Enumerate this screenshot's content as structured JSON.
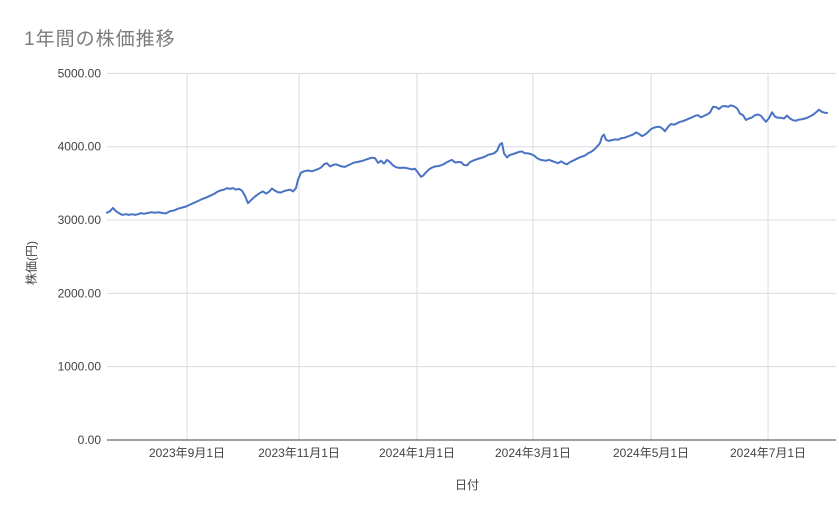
{
  "title": "1年間の株価推移",
  "colors": {
    "line": "#4a73c4",
    "grid": "#dadce0",
    "axis_baseline": "#424242",
    "tick_text": "#424242",
    "title_text": "#7b7b7b"
  },
  "chart_data": {
    "type": "line",
    "title": "1年間の株価推移",
    "xlabel": "日付",
    "ylabel": "株価(円)",
    "ylim": [
      0,
      5000
    ],
    "grid": true,
    "legend": "none",
    "y_ticks": [
      "0.00",
      "1000.00",
      "2000.00",
      "3000.00",
      "4000.00",
      "5000.00"
    ],
    "x_ticks": [
      {
        "label": "2023年9月1日",
        "f": 0.1111
      },
      {
        "label": "2023年11月1日",
        "f": 0.2667
      },
      {
        "label": "2024年1月1日",
        "f": 0.4306
      },
      {
        "label": "2024年3月1日",
        "f": 0.5917
      },
      {
        "label": "2024年5月1日",
        "f": 0.7556
      },
      {
        "label": "2024年7月1日",
        "f": 0.9181
      }
    ],
    "series": [
      {
        "name": "株価",
        "points": [
          [
            0.0,
            3100
          ],
          [
            0.0042,
            3120
          ],
          [
            0.0083,
            3165
          ],
          [
            0.0125,
            3120
          ],
          [
            0.0167,
            3095
          ],
          [
            0.0208,
            3070
          ],
          [
            0.0264,
            3080
          ],
          [
            0.0306,
            3070
          ],
          [
            0.0347,
            3080
          ],
          [
            0.0389,
            3070
          ],
          [
            0.0431,
            3080
          ],
          [
            0.0472,
            3095
          ],
          [
            0.0514,
            3085
          ],
          [
            0.0556,
            3095
          ],
          [
            0.0611,
            3105
          ],
          [
            0.0667,
            3100
          ],
          [
            0.0722,
            3105
          ],
          [
            0.0778,
            3095
          ],
          [
            0.0819,
            3090
          ],
          [
            0.0875,
            3120
          ],
          [
            0.0931,
            3130
          ],
          [
            0.0986,
            3155
          ],
          [
            0.1042,
            3170
          ],
          [
            0.1097,
            3185
          ],
          [
            0.1153,
            3210
          ],
          [
            0.1208,
            3235
          ],
          [
            0.1264,
            3260
          ],
          [
            0.1319,
            3285
          ],
          [
            0.1375,
            3305
          ],
          [
            0.1431,
            3330
          ],
          [
            0.1486,
            3355
          ],
          [
            0.1542,
            3390
          ],
          [
            0.1583,
            3405
          ],
          [
            0.1625,
            3415
          ],
          [
            0.1667,
            3435
          ],
          [
            0.1708,
            3425
          ],
          [
            0.175,
            3435
          ],
          [
            0.1792,
            3415
          ],
          [
            0.1833,
            3425
          ],
          [
            0.1875,
            3400
          ],
          [
            0.1917,
            3330
          ],
          [
            0.1958,
            3230
          ],
          [
            0.2,
            3270
          ],
          [
            0.2042,
            3310
          ],
          [
            0.2083,
            3340
          ],
          [
            0.2125,
            3370
          ],
          [
            0.2167,
            3390
          ],
          [
            0.2208,
            3360
          ],
          [
            0.225,
            3385
          ],
          [
            0.2292,
            3430
          ],
          [
            0.2333,
            3400
          ],
          [
            0.2375,
            3380
          ],
          [
            0.2417,
            3375
          ],
          [
            0.2458,
            3395
          ],
          [
            0.25,
            3405
          ],
          [
            0.2542,
            3415
          ],
          [
            0.2583,
            3390
          ],
          [
            0.2625,
            3435
          ],
          [
            0.2653,
            3550
          ],
          [
            0.2694,
            3645
          ],
          [
            0.2736,
            3665
          ],
          [
            0.2792,
            3675
          ],
          [
            0.2847,
            3665
          ],
          [
            0.2889,
            3680
          ],
          [
            0.2931,
            3695
          ],
          [
            0.2972,
            3715
          ],
          [
            0.3014,
            3760
          ],
          [
            0.3056,
            3775
          ],
          [
            0.3097,
            3730
          ],
          [
            0.3139,
            3750
          ],
          [
            0.3181,
            3760
          ],
          [
            0.3222,
            3745
          ],
          [
            0.3264,
            3730
          ],
          [
            0.3306,
            3725
          ],
          [
            0.3347,
            3745
          ],
          [
            0.3389,
            3765
          ],
          [
            0.3431,
            3785
          ],
          [
            0.3472,
            3790
          ],
          [
            0.3514,
            3800
          ],
          [
            0.3556,
            3810
          ],
          [
            0.3597,
            3825
          ],
          [
            0.3639,
            3840
          ],
          [
            0.3681,
            3850
          ],
          [
            0.3722,
            3845
          ],
          [
            0.3764,
            3780
          ],
          [
            0.3806,
            3810
          ],
          [
            0.3847,
            3770
          ],
          [
            0.3889,
            3820
          ],
          [
            0.3931,
            3790
          ],
          [
            0.3972,
            3745
          ],
          [
            0.4014,
            3720
          ],
          [
            0.4069,
            3710
          ],
          [
            0.4111,
            3715
          ],
          [
            0.4153,
            3710
          ],
          [
            0.4194,
            3700
          ],
          [
            0.4236,
            3690
          ],
          [
            0.4278,
            3700
          ],
          [
            0.4319,
            3645
          ],
          [
            0.4361,
            3590
          ],
          [
            0.4389,
            3605
          ],
          [
            0.4431,
            3650
          ],
          [
            0.4472,
            3690
          ],
          [
            0.4514,
            3715
          ],
          [
            0.4556,
            3730
          ],
          [
            0.4597,
            3735
          ],
          [
            0.4639,
            3745
          ],
          [
            0.4681,
            3765
          ],
          [
            0.4722,
            3790
          ],
          [
            0.4764,
            3810
          ],
          [
            0.4792,
            3820
          ],
          [
            0.4833,
            3785
          ],
          [
            0.4875,
            3790
          ],
          [
            0.4917,
            3790
          ],
          [
            0.4958,
            3750
          ],
          [
            0.5,
            3745
          ],
          [
            0.5042,
            3790
          ],
          [
            0.5083,
            3810
          ],
          [
            0.5125,
            3825
          ],
          [
            0.5167,
            3840
          ],
          [
            0.5208,
            3850
          ],
          [
            0.525,
            3865
          ],
          [
            0.5292,
            3890
          ],
          [
            0.5333,
            3900
          ],
          [
            0.5375,
            3910
          ],
          [
            0.5417,
            3945
          ],
          [
            0.5458,
            4035
          ],
          [
            0.5486,
            4050
          ],
          [
            0.5514,
            3910
          ],
          [
            0.5556,
            3855
          ],
          [
            0.5597,
            3890
          ],
          [
            0.5639,
            3900
          ],
          [
            0.5681,
            3915
          ],
          [
            0.5722,
            3930
          ],
          [
            0.5764,
            3935
          ],
          [
            0.5806,
            3910
          ],
          [
            0.5847,
            3910
          ],
          [
            0.5889,
            3900
          ],
          [
            0.5931,
            3880
          ],
          [
            0.5972,
            3845
          ],
          [
            0.6014,
            3825
          ],
          [
            0.6056,
            3815
          ],
          [
            0.6097,
            3810
          ],
          [
            0.6139,
            3820
          ],
          [
            0.6181,
            3805
          ],
          [
            0.6222,
            3790
          ],
          [
            0.6264,
            3775
          ],
          [
            0.6306,
            3800
          ],
          [
            0.6347,
            3775
          ],
          [
            0.6389,
            3760
          ],
          [
            0.6431,
            3790
          ],
          [
            0.6472,
            3810
          ],
          [
            0.6514,
            3830
          ],
          [
            0.6556,
            3850
          ],
          [
            0.6597,
            3865
          ],
          [
            0.6639,
            3880
          ],
          [
            0.6681,
            3910
          ],
          [
            0.6722,
            3930
          ],
          [
            0.6764,
            3960
          ],
          [
            0.6806,
            4000
          ],
          [
            0.6847,
            4050
          ],
          [
            0.6875,
            4140
          ],
          [
            0.6903,
            4165
          ],
          [
            0.6931,
            4095
          ],
          [
            0.6972,
            4080
          ],
          [
            0.7014,
            4090
          ],
          [
            0.7056,
            4100
          ],
          [
            0.7097,
            4095
          ],
          [
            0.7139,
            4115
          ],
          [
            0.7181,
            4120
          ],
          [
            0.7222,
            4135
          ],
          [
            0.7264,
            4150
          ],
          [
            0.7306,
            4165
          ],
          [
            0.7347,
            4195
          ],
          [
            0.7389,
            4175
          ],
          [
            0.7431,
            4145
          ],
          [
            0.7472,
            4165
          ],
          [
            0.7514,
            4200
          ],
          [
            0.7556,
            4240
          ],
          [
            0.7597,
            4260
          ],
          [
            0.7639,
            4270
          ],
          [
            0.7681,
            4270
          ],
          [
            0.7722,
            4240
          ],
          [
            0.775,
            4210
          ],
          [
            0.7792,
            4270
          ],
          [
            0.7833,
            4310
          ],
          [
            0.7875,
            4300
          ],
          [
            0.7917,
            4320
          ],
          [
            0.7958,
            4340
          ],
          [
            0.8,
            4350
          ],
          [
            0.8042,
            4365
          ],
          [
            0.8083,
            4385
          ],
          [
            0.8125,
            4400
          ],
          [
            0.8167,
            4420
          ],
          [
            0.8208,
            4430
          ],
          [
            0.825,
            4400
          ],
          [
            0.8292,
            4420
          ],
          [
            0.8333,
            4440
          ],
          [
            0.8375,
            4465
          ],
          [
            0.8417,
            4545
          ],
          [
            0.8458,
            4540
          ],
          [
            0.85,
            4515
          ],
          [
            0.8542,
            4550
          ],
          [
            0.8583,
            4555
          ],
          [
            0.8625,
            4545
          ],
          [
            0.8667,
            4565
          ],
          [
            0.8708,
            4550
          ],
          [
            0.875,
            4525
          ],
          [
            0.8792,
            4450
          ],
          [
            0.8833,
            4430
          ],
          [
            0.8875,
            4365
          ],
          [
            0.8917,
            4385
          ],
          [
            0.8958,
            4400
          ],
          [
            0.9,
            4430
          ],
          [
            0.9042,
            4440
          ],
          [
            0.9083,
            4420
          ],
          [
            0.9125,
            4370
          ],
          [
            0.9153,
            4340
          ],
          [
            0.9194,
            4390
          ],
          [
            0.9236,
            4470
          ],
          [
            0.9278,
            4410
          ],
          [
            0.9319,
            4395
          ],
          [
            0.9361,
            4395
          ],
          [
            0.9403,
            4385
          ],
          [
            0.9444,
            4425
          ],
          [
            0.9486,
            4385
          ],
          [
            0.9528,
            4360
          ],
          [
            0.9569,
            4355
          ],
          [
            0.9611,
            4370
          ],
          [
            0.9653,
            4375
          ],
          [
            0.9694,
            4385
          ],
          [
            0.9736,
            4400
          ],
          [
            0.9778,
            4420
          ],
          [
            0.9819,
            4445
          ],
          [
            0.9861,
            4480
          ],
          [
            0.9889,
            4505
          ],
          [
            0.9931,
            4475
          ],
          [
            0.9972,
            4462
          ],
          [
            1.0,
            4460
          ]
        ]
      }
    ]
  }
}
